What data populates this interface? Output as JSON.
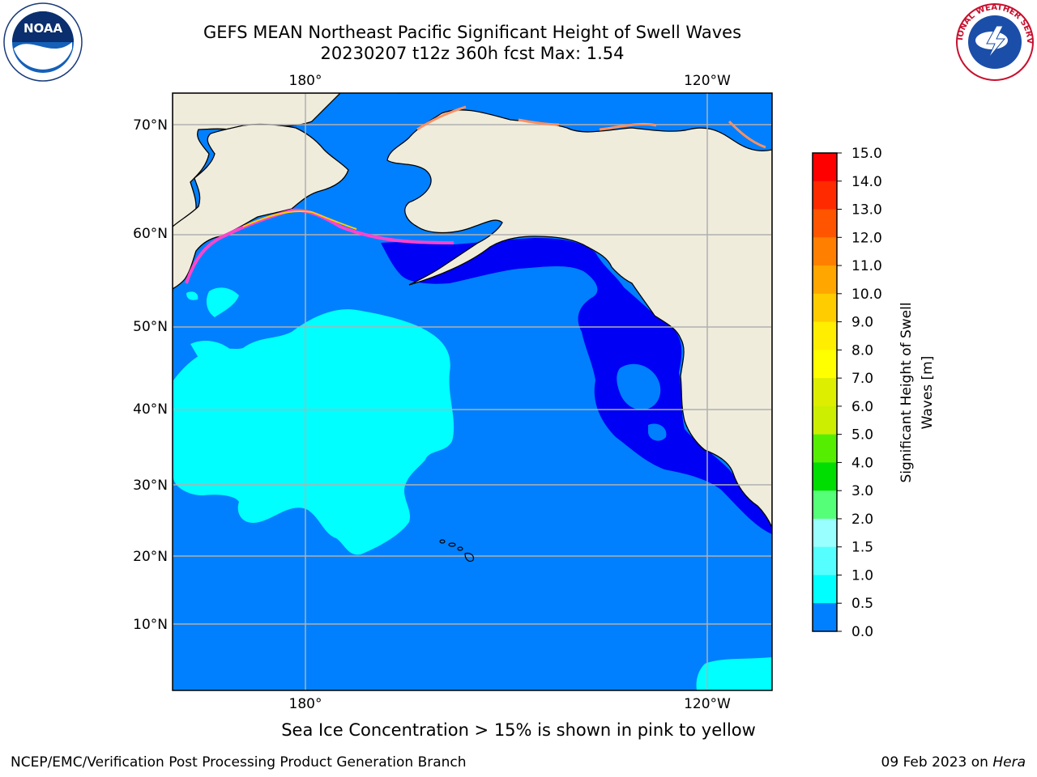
{
  "header": {
    "title_line1": "GEFS MEAN Northeast Pacific Significant Height of Swell Waves",
    "title_line2": "20230207 t12z 360h fcst   Max: 1.54"
  },
  "map": {
    "top_lon_labels": [
      "180°",
      "120°W"
    ],
    "bottom_lon_labels": [
      "180°",
      "120°W"
    ],
    "lat_labels": [
      "70°N",
      "60°N",
      "50°N",
      "40°N",
      "30°N",
      "20°N",
      "10°N"
    ],
    "grid": true,
    "colors": {
      "land": "#efecdc",
      "ocean_0_5_1_0": "#0080ff",
      "ocean_0_0_0_5": "#0000f5",
      "ocean_1_0_1_5": "#00ffff",
      "grid": "#b0b0b0"
    }
  },
  "colorbar": {
    "title": "Significant Height of Swell Waves [m]",
    "title_line1": "Significant Height of Swell",
    "title_line2": "Waves [m]",
    "tick_labels": [
      "15.0",
      "14.0",
      "13.0",
      "12.0",
      "11.0",
      "10.0",
      "9.0",
      "8.0",
      "7.0",
      "6.0",
      "5.0",
      "4.0",
      "3.0",
      "2.0",
      "1.5",
      "1.0",
      "0.5",
      "0.0"
    ],
    "colors_top_to_bottom": [
      "#ff0000",
      "#ff2a00",
      "#ff5500",
      "#ff8000",
      "#ffa600",
      "#ffcc00",
      "#ffee00",
      "#ffff00",
      "#ddee00",
      "#ccee00",
      "#55ee00",
      "#00dd00",
      "#55ff77",
      "#99ffff",
      "#55ffff",
      "#00ffff",
      "#0080ff",
      "#0000ff"
    ]
  },
  "footer": {
    "note": "Sea Ice Concentration > 15% is shown in pink to yellow",
    "credit": "NCEP/EMC/Verification Post Processing Product Generation Branch",
    "date_prefix": "09 Feb 2023 on ",
    "date_machine": "Hera"
  },
  "logos": {
    "noaa_text": "NOAA",
    "nws_text": "NATIONAL WEATHER SERVICE"
  }
}
